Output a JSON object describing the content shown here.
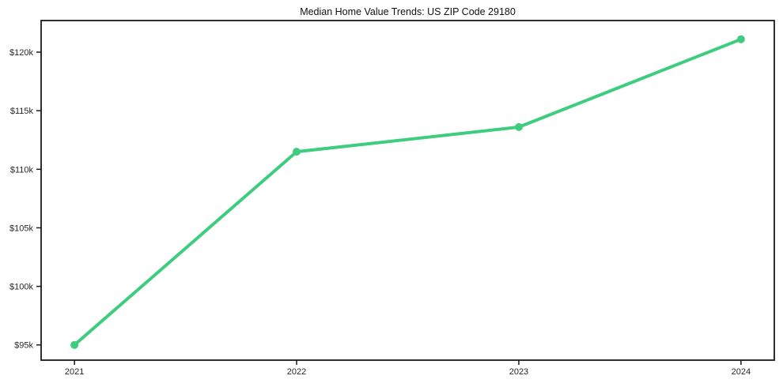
{
  "chart_data": {
    "type": "line",
    "title": "Median Home Value Trends: US ZIP Code 29180",
    "categories": [
      "2021",
      "2022",
      "2023",
      "2024"
    ],
    "x": [
      0,
      1,
      2,
      3
    ],
    "series": [
      {
        "name": "Median home value",
        "values": [
          95000,
          111500,
          113600,
          121100
        ]
      }
    ],
    "ytick_values": [
      95000,
      100000,
      105000,
      110000,
      115000,
      120000
    ],
    "ytick_labels": [
      "$95k",
      "$100k",
      "$105k",
      "$110k",
      "$115k",
      "$120k"
    ],
    "xlim": [
      -0.15,
      3.15
    ],
    "ylim": [
      93700,
      122700
    ],
    "grid": false,
    "legend": "none",
    "xlabel": "",
    "ylabel": "",
    "line_color": "#3ecd7e",
    "axis_color": "#1a1a1a",
    "tick_label_color": "#262626",
    "marker": "circle"
  }
}
